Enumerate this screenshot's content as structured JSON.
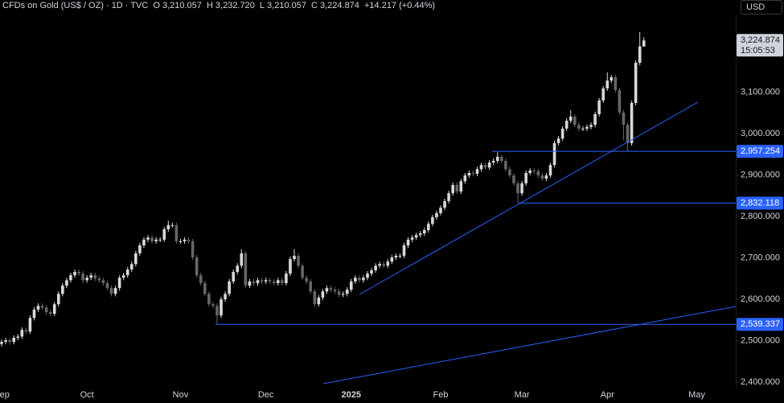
{
  "chart_data": {
    "type": "candlestick",
    "title": "CFDs on Gold (US$ / OZ) · 1D · TVC",
    "legend": [
      {
        "key": "O",
        "value": "3,210.057"
      },
      {
        "key": "H",
        "value": "3,232.720"
      },
      {
        "key": "L",
        "value": "3,210.057"
      },
      {
        "key": "C",
        "value": "3,224.874"
      }
    ],
    "change": "+14.217 (+0.44%)",
    "currency": "USD",
    "last_price": {
      "value": 3224.874,
      "label": "3,224.874"
    },
    "countdown": "15:05:53",
    "up_color": "#d9d9d9",
    "down_color": "#666666",
    "level_color": "#2962ff",
    "levels": [
      {
        "value": 2957.254,
        "label": "2,957.254"
      },
      {
        "value": 2832.118,
        "label": "2,832.118"
      },
      {
        "value": 2539.337,
        "label": "2,539.337"
      }
    ],
    "ylim": [
      2384.5,
      3322.5
    ],
    "yticks": [
      {
        "value": 3100,
        "label": "3,100.000"
      },
      {
        "value": 3000,
        "label": "3,000.000"
      },
      {
        "value": 2900,
        "label": "2,900.000"
      },
      {
        "value": 2800,
        "label": "2,800.000"
      },
      {
        "value": 2700,
        "label": "2,700.000"
      },
      {
        "value": 2600,
        "label": "2,600.000"
      },
      {
        "value": 2500,
        "label": "2,500.000"
      },
      {
        "value": 2400,
        "label": "2,400.000"
      }
    ],
    "categories": [
      "Sep",
      null,
      null,
      null,
      null,
      null,
      null,
      null,
      null,
      null,
      null,
      null,
      null,
      null,
      null,
      null,
      null,
      null,
      null,
      null,
      null,
      "Oct",
      null,
      null,
      null,
      null,
      null,
      null,
      null,
      null,
      null,
      null,
      null,
      null,
      null,
      null,
      null,
      null,
      null,
      null,
      null,
      null,
      null,
      null,
      "Nov",
      null,
      null,
      null,
      null,
      null,
      null,
      null,
      null,
      null,
      null,
      null,
      null,
      null,
      null,
      null,
      null,
      null,
      null,
      null,
      null,
      "Dec",
      null,
      null,
      null,
      null,
      null,
      null,
      null,
      null,
      null,
      null,
      null,
      null,
      null,
      null,
      null,
      null,
      null,
      null,
      null,
      null,
      "2025",
      null,
      null,
      null,
      null,
      null,
      null,
      null,
      null,
      null,
      null,
      null,
      null,
      null,
      null,
      null,
      null,
      null,
      null,
      null,
      null,
      null,
      "Feb",
      null,
      null,
      null,
      null,
      null,
      null,
      null,
      null,
      null,
      null,
      null,
      null,
      null,
      null,
      null,
      null,
      null,
      null,
      null,
      "Mar",
      null,
      null,
      null,
      null,
      null,
      null,
      null,
      null,
      null,
      null,
      null,
      null,
      null,
      null,
      null,
      null,
      null,
      null,
      null,
      null,
      "Apr",
      null,
      null,
      null,
      null,
      null,
      null,
      null,
      null,
      null,
      null,
      null,
      null,
      null,
      null,
      null,
      null,
      null,
      null,
      null,
      null,
      null,
      "May",
      null,
      null,
      null,
      null,
      null,
      null,
      null,
      null,
      null
    ],
    "open": [
      2492,
      2497,
      2501,
      2497,
      2507,
      2510,
      2526,
      2522,
      2555,
      2575,
      2584,
      2580,
      2569,
      2565,
      2588,
      2613,
      2633,
      2646,
      2658,
      2666,
      2662,
      2646,
      2652,
      2658,
      2650,
      2646,
      2639,
      2627,
      2613,
      2627,
      2652,
      2658,
      2672,
      2685,
      2711,
      2730,
      2744,
      2749,
      2740,
      2744,
      2744,
      2769,
      2779,
      2779,
      2740,
      2740,
      2744,
      2740,
      2701,
      2658,
      2639,
      2613,
      2588,
      2584,
      2561,
      2600,
      2613,
      2643,
      2666,
      2681,
      2711,
      2633,
      2643,
      2639,
      2646,
      2643,
      2646,
      2643,
      2639,
      2646,
      2639,
      2662,
      2697,
      2705,
      2681,
      2652,
      2643,
      2619,
      2588,
      2604,
      2619,
      2627,
      2623,
      2619,
      2611,
      2613,
      2623,
      2643,
      2652,
      2646,
      2652,
      2662,
      2670,
      2681,
      2685,
      2681,
      2691,
      2701,
      2705,
      2705,
      2730,
      2744,
      2749,
      2755,
      2759,
      2767,
      2782,
      2798,
      2808,
      2821,
      2837,
      2856,
      2876,
      2860,
      2885,
      2899,
      2905,
      2903,
      2914,
      2924,
      2918,
      2930,
      2934,
      2944,
      2934,
      2914,
      2899,
      2880,
      2856,
      2880,
      2905,
      2911,
      2909,
      2899,
      2891,
      2899,
      2924,
      2977,
      2988,
      3012,
      3031,
      3041,
      3021,
      3012,
      3012,
      3016,
      3021,
      3047,
      3080,
      3109,
      3128,
      3136,
      3105,
      3051,
      3021,
      2977,
      3074,
      3171,
      3210.057,
      null,
      null,
      null,
      null,
      null,
      null,
      null,
      null,
      null,
      null,
      null,
      null,
      null,
      null,
      null,
      null,
      null,
      null,
      null,
      null,
      null,
      null
    ],
    "high": [
      2503,
      2507,
      2507,
      2513,
      2516,
      2532,
      2532,
      2561,
      2581,
      2590,
      2590,
      2586,
      2575,
      2594,
      2619,
      2639,
      2652,
      2664,
      2672,
      2672,
      2668,
      2658,
      2664,
      2664,
      2656,
      2652,
      2645,
      2633,
      2633,
      2658,
      2664,
      2678,
      2691,
      2717,
      2736,
      2750,
      2755,
      2755,
      2750,
      2750,
      2775,
      2790,
      2785,
      2785,
      2746,
      2750,
      2750,
      2746,
      2707,
      2664,
      2645,
      2619,
      2594,
      2590,
      2606,
      2619,
      2649,
      2672,
      2687,
      2721,
      2717,
      2649,
      2649,
      2652,
      2652,
      2652,
      2652,
      2649,
      2652,
      2652,
      2668,
      2703,
      2721,
      2711,
      2687,
      2658,
      2649,
      2625,
      2610,
      2625,
      2633,
      2633,
      2629,
      2625,
      2619,
      2629,
      2649,
      2658,
      2658,
      2658,
      2668,
      2676,
      2687,
      2691,
      2691,
      2697,
      2707,
      2711,
      2711,
      2736,
      2750,
      2755,
      2761,
      2765,
      2773,
      2788,
      2804,
      2814,
      2827,
      2843,
      2862,
      2882,
      2882,
      2891,
      2905,
      2911,
      2911,
      2920,
      2930,
      2930,
      2936,
      2940,
      2955,
      2950,
      2940,
      2920,
      2905,
      2886,
      2886,
      2911,
      2917,
      2917,
      2915,
      2905,
      2905,
      2930,
      2983,
      2994,
      3018,
      3037,
      3057,
      3047,
      3027,
      3018,
      3022,
      3027,
      3053,
      3086,
      3115,
      3148,
      3142,
      3142,
      3111,
      3057,
      3027,
      3080,
      3177,
      3245,
      3232.72,
      null,
      null,
      null,
      null,
      null,
      null,
      null,
      null,
      null,
      null,
      null,
      null,
      null,
      null,
      null,
      null,
      null,
      null,
      null,
      null,
      null,
      null
    ],
    "low": [
      2486,
      2491,
      2491,
      2491,
      2501,
      2504,
      2516,
      2516,
      2549,
      2569,
      2574,
      2563,
      2559,
      2559,
      2582,
      2607,
      2627,
      2640,
      2652,
      2656,
      2640,
      2640,
      2646,
      2644,
      2640,
      2633,
      2621,
      2607,
      2607,
      2621,
      2646,
      2652,
      2666,
      2679,
      2705,
      2724,
      2738,
      2734,
      2734,
      2738,
      2738,
      2763,
      2773,
      2734,
      2734,
      2734,
      2734,
      2695,
      2652,
      2633,
      2607,
      2582,
      2578,
      2539,
      2555,
      2594,
      2607,
      2637,
      2660,
      2675,
      2627,
      2627,
      2633,
      2633,
      2637,
      2637,
      2637,
      2633,
      2633,
      2633,
      2633,
      2656,
      2691,
      2675,
      2646,
      2637,
      2613,
      2582,
      2582,
      2598,
      2613,
      2617,
      2613,
      2605,
      2605,
      2607,
      2617,
      2637,
      2640,
      2640,
      2646,
      2656,
      2664,
      2675,
      2675,
      2675,
      2685,
      2695,
      2699,
      2699,
      2724,
      2738,
      2743,
      2749,
      2753,
      2761,
      2776,
      2792,
      2802,
      2815,
      2831,
      2850,
      2854,
      2854,
      2879,
      2893,
      2897,
      2897,
      2908,
      2912,
      2912,
      2924,
      2928,
      2928,
      2908,
      2893,
      2874,
      2832,
      2850,
      2874,
      2899,
      2903,
      2893,
      2885,
      2885,
      2893,
      2918,
      2971,
      2982,
      3006,
      3025,
      3015,
      3006,
      3006,
      3006,
      3010,
      3015,
      3041,
      3074,
      3103,
      3122,
      3099,
      3045,
      2985,
      2957,
      2971,
      3068,
      3165,
      3210.057,
      null,
      null,
      null,
      null,
      null,
      null,
      null,
      null,
      null,
      null,
      null,
      null,
      null,
      null,
      null,
      null,
      null,
      null,
      null,
      null,
      null,
      null
    ],
    "close": [
      2497,
      2501,
      2497,
      2507,
      2510,
      2526,
      2522,
      2555,
      2575,
      2584,
      2580,
      2569,
      2565,
      2588,
      2613,
      2633,
      2646,
      2658,
      2666,
      2662,
      2646,
      2652,
      2658,
      2650,
      2646,
      2639,
      2627,
      2613,
      2627,
      2652,
      2658,
      2672,
      2685,
      2711,
      2730,
      2744,
      2749,
      2740,
      2744,
      2744,
      2769,
      2779,
      2779,
      2740,
      2740,
      2744,
      2740,
      2701,
      2658,
      2639,
      2613,
      2588,
      2584,
      2561,
      2600,
      2613,
      2643,
      2666,
      2681,
      2711,
      2633,
      2643,
      2639,
      2646,
      2643,
      2646,
      2643,
      2639,
      2646,
      2639,
      2662,
      2697,
      2705,
      2681,
      2652,
      2643,
      2619,
      2588,
      2604,
      2619,
      2627,
      2623,
      2619,
      2611,
      2613,
      2623,
      2643,
      2652,
      2646,
      2652,
      2662,
      2670,
      2681,
      2685,
      2681,
      2691,
      2701,
      2705,
      2705,
      2730,
      2744,
      2749,
      2755,
      2759,
      2767,
      2782,
      2798,
      2808,
      2821,
      2837,
      2856,
      2876,
      2860,
      2885,
      2899,
      2905,
      2903,
      2914,
      2924,
      2918,
      2930,
      2934,
      2944,
      2934,
      2914,
      2899,
      2880,
      2856,
      2880,
      2905,
      2911,
      2909,
      2899,
      2891,
      2899,
      2924,
      2977,
      2988,
      3012,
      3031,
      3041,
      3021,
      3012,
      3012,
      3016,
      3021,
      3047,
      3080,
      3109,
      3128,
      3136,
      3105,
      3051,
      3021,
      2977,
      3074,
      3171,
      3210.657,
      3224.874,
      null,
      null,
      null,
      null,
      null,
      null,
      null,
      null,
      null,
      null,
      null,
      null,
      null,
      null,
      null,
      null,
      null,
      null,
      null,
      null,
      null,
      null
    ]
  }
}
